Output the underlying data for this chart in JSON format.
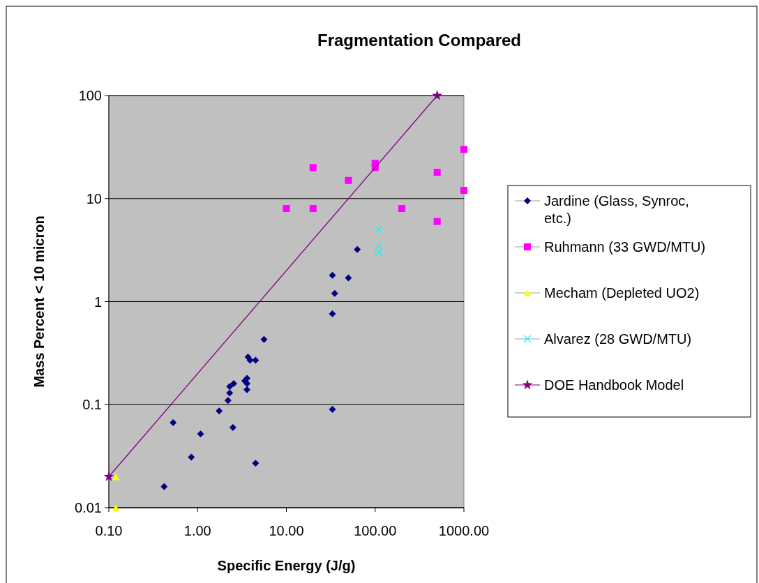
{
  "chart_data": {
    "type": "scatter",
    "title": "Fragmentation Compared",
    "xlabel": "Specific Energy (J/g)",
    "ylabel": "Mass Percent < 10 micron",
    "log": "xy",
    "grid": "y",
    "legend": "right",
    "xlim": [
      0.1,
      1000
    ],
    "xticks": [
      {
        "value": 0.1,
        "label": "0.10"
      },
      {
        "value": 1,
        "label": "1.00"
      },
      {
        "value": 10,
        "label": "10.00"
      },
      {
        "value": 100,
        "label": "100.00"
      },
      {
        "value": 1000,
        "label": "1000.00"
      }
    ],
    "ylim": [
      0.01,
      100
    ],
    "yticks": [
      0.01,
      0.1,
      1,
      10,
      100
    ],
    "series": [
      {
        "name": "Jardine (Glass, Synroc, etc.)",
        "color": "#000080",
        "marker": "diamond",
        "x": [
          0.42,
          0.53,
          0.85,
          1.08,
          1.75,
          2.2,
          2.3,
          2.3,
          2.55,
          2.5,
          3.4,
          3.6,
          3.6,
          3.6,
          3.7,
          3.9,
          4.5,
          5.6,
          4.5,
          33,
          35,
          33,
          33,
          50,
          63
        ],
        "values": [
          0.016,
          0.067,
          0.031,
          0.052,
          0.087,
          0.11,
          0.13,
          0.15,
          0.16,
          0.06,
          0.17,
          0.18,
          0.16,
          0.14,
          0.29,
          0.27,
          0.27,
          0.43,
          0.027,
          1.8,
          1.2,
          0.76,
          0.09,
          1.7,
          3.2
        ]
      },
      {
        "name": "Ruhmann (33 GWD/MTU)",
        "color": "#ff00ff",
        "marker": "square",
        "x": [
          10,
          20,
          20,
          50,
          100,
          100,
          200,
          500,
          500,
          1000,
          1000
        ],
        "values": [
          8,
          20,
          8,
          15,
          22,
          20,
          8,
          18,
          6,
          30,
          12
        ]
      },
      {
        "name": "Mecham (Depleted UO2)",
        "color": "#ffff00",
        "marker": "triangle",
        "x": [
          0.12,
          0.12
        ],
        "values": [
          0.02,
          0.01
        ]
      },
      {
        "name": "Alvarez (28 GWD/MTU)",
        "color": "#00ffff",
        "marker": "cross",
        "x": [
          110,
          110,
          110
        ],
        "values": [
          5,
          3.5,
          3
        ]
      },
      {
        "name": "DOE Handbook Model",
        "color": "#800080",
        "type": "line",
        "marker": "star",
        "x": [
          0.1,
          500
        ],
        "values": [
          0.02,
          100
        ]
      }
    ]
  }
}
